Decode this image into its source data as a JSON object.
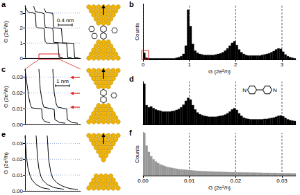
{
  "chart_data": [
    {
      "title": "a",
      "type": "line",
      "y_label": "G (2e²/h)",
      "xlim": [
        0,
        1.6
      ],
      "ylim": [
        0,
        3.5
      ],
      "yticks": [
        0,
        1,
        2,
        3
      ],
      "grid": true,
      "tick_labels": "y",
      "color": "#000000",
      "scale_bar": {
        "value": 0.4,
        "label": "0.4 nm"
      },
      "series": [
        {
          "x": [
            0,
            0.05,
            0.1,
            0.25,
            0.3,
            0.32,
            0.35,
            0.55,
            0.58,
            0.62,
            0.95,
            0.98,
            1.1
          ],
          "values": [
            3.45,
            3.2,
            3.05,
            3,
            2.95,
            2.1,
            2.02,
            1.98,
            1.1,
            1,
            0.97,
            0.05,
            0
          ]
        },
        {
          "x": [
            0.25,
            0.3,
            0.5,
            0.55,
            0.58,
            0.8,
            0.83,
            1.2,
            1.23,
            1.35
          ],
          "values": [
            3.45,
            3.1,
            3,
            2.95,
            2.05,
            1.98,
            1.05,
            0.97,
            0.04,
            0
          ]
        },
        {
          "x": [
            0.55,
            0.6,
            0.8,
            0.83,
            1.05,
            1.08,
            1.4,
            1.43,
            1.55
          ],
          "values": [
            3.3,
            3.05,
            2.98,
            2.02,
            1.97,
            1.02,
            0.98,
            0.03,
            0
          ]
        }
      ]
    },
    {
      "title": "b",
      "type": "histogram",
      "x_label": "G (2e²/h)",
      "y_label": "Counts",
      "xlim": [
        0,
        3.3
      ],
      "ylim": [
        0,
        100
      ],
      "xticks": [
        0,
        1,
        2,
        3
      ],
      "grid": true,
      "tick_labels": "x",
      "color": "#000000",
      "bins": [
        0,
        0.05,
        0.1,
        0.15,
        0.2,
        0.25,
        0.3,
        0.35,
        0.4,
        0.45,
        0.5,
        0.55,
        0.6,
        0.65,
        0.7,
        0.75,
        0.8,
        0.85,
        0.9,
        0.95,
        1,
        1.05,
        1.1,
        1.15,
        1.2,
        1.25,
        1.3,
        1.35,
        1.4,
        1.45,
        1.5,
        1.55,
        1.6,
        1.65,
        1.7,
        1.75,
        1.8,
        1.85,
        1.9,
        1.95,
        2,
        2.05,
        2.1,
        2.15,
        2.2,
        2.25,
        2.3,
        2.35,
        2.4,
        2.45,
        2.5,
        2.55,
        2.6,
        2.65,
        2.7,
        2.75,
        2.8,
        2.85,
        2.9,
        2.95,
        3,
        3.05,
        3.1,
        3.15,
        3.2,
        3.25,
        3.3
      ],
      "values": [
        12,
        3,
        2,
        2,
        2,
        2,
        2,
        2,
        2,
        2,
        2,
        2,
        2,
        2,
        3,
        4,
        6,
        10,
        25,
        90,
        60,
        28,
        16,
        12,
        10,
        9,
        8,
        8,
        8,
        8,
        8,
        9,
        10,
        11,
        13,
        16,
        20,
        25,
        30,
        33,
        26,
        18,
        13,
        10,
        8,
        7,
        7,
        7,
        7,
        7,
        7,
        8,
        9,
        10,
        11,
        13,
        15,
        18,
        20,
        19,
        14,
        9,
        6,
        4,
        3,
        2
      ]
    },
    {
      "title": "c",
      "type": "line",
      "y_label": "G (2e²/h)",
      "xlim": [
        0,
        4
      ],
      "ylim": [
        0,
        0.035
      ],
      "yticks": [
        {
          "value": 0,
          "label": "0.00"
        },
        0.01,
        0.02,
        0.03
      ],
      "grid": true,
      "tick_labels": "y",
      "color": "#000000",
      "scale_bar": {
        "value": 1,
        "label": "1 nm"
      },
      "series": [
        {
          "x": [
            0,
            0.15,
            0.3,
            0.4,
            0.5,
            1.2,
            1.25,
            1.4,
            1.8
          ],
          "values": [
            0.035,
            0.025,
            0.016,
            0.012,
            0.0105,
            0.0098,
            0.004,
            0.002,
            0.001
          ]
        },
        {
          "x": [
            1,
            1.1,
            1.25,
            1.35,
            2.1,
            2.15,
            2.5,
            2.9
          ],
          "values": [
            0.035,
            0.022,
            0.014,
            0.011,
            0.0095,
            0.003,
            0.0012,
            0.0008
          ]
        },
        {
          "x": [
            2,
            2.1,
            2.25,
            2.35,
            3,
            3.05,
            3.4,
            3.8
          ],
          "values": [
            0.035,
            0.02,
            0.013,
            0.011,
            0.0098,
            0.003,
            0.0012,
            0.0008
          ]
        }
      ]
    },
    {
      "title": "d",
      "type": "histogram",
      "xlim": [
        0,
        0.033
      ],
      "ylim": [
        0,
        100
      ],
      "xticks": [
        0,
        0.01,
        0.02,
        0.03
      ],
      "grid": true,
      "tick_labels": false,
      "color": "#000000",
      "annotations": [
        {
          "text": "N"
        },
        {
          "text": "N"
        }
      ],
      "bins": [
        0,
        0.0005,
        0.001,
        0.0015,
        0.002,
        0.0025,
        0.003,
        0.0035,
        0.004,
        0.0045,
        0.005,
        0.0055,
        0.006,
        0.0065,
        0.007,
        0.0075,
        0.008,
        0.0085,
        0.009,
        0.0095,
        0.01,
        0.0105,
        0.011,
        0.0115,
        0.012,
        0.0125,
        0.013,
        0.0135,
        0.014,
        0.0145,
        0.015,
        0.0155,
        0.016,
        0.0165,
        0.017,
        0.0175,
        0.018,
        0.0185,
        0.019,
        0.0195,
        0.02,
        0.0205,
        0.021,
        0.0215,
        0.022,
        0.0225,
        0.023,
        0.0235,
        0.024,
        0.0245,
        0.025,
        0.0255,
        0.026,
        0.0265,
        0.027,
        0.0275,
        0.028,
        0.0285,
        0.029,
        0.0295,
        0.03,
        0.0305,
        0.031,
        0.0315,
        0.032,
        0.0325,
        0.033
      ],
      "values": [
        95,
        45,
        40,
        42,
        38,
        35,
        33,
        32,
        30,
        30,
        30,
        30,
        31,
        32,
        34,
        36,
        40,
        46,
        55,
        62,
        58,
        45,
        35,
        28,
        24,
        22,
        20,
        19,
        18,
        18,
        18,
        18,
        19,
        20,
        21,
        23,
        26,
        30,
        35,
        38,
        34,
        26,
        20,
        16,
        14,
        13,
        12,
        12,
        12,
        12,
        12,
        12,
        13,
        13,
        14,
        15,
        16,
        18,
        20,
        21,
        19,
        15,
        12,
        10,
        9,
        8
      ]
    },
    {
      "title": "e",
      "type": "line",
      "y_label": "G (2e²/h)",
      "xlim": [
        0,
        4
      ],
      "ylim": [
        0,
        0.035
      ],
      "yticks": [
        {
          "value": 0,
          "label": "0.00"
        },
        0.01,
        0.02,
        0.03
      ],
      "grid": true,
      "tick_labels": "y",
      "color": "#000000",
      "series": [
        {
          "x": [
            0,
            0.1,
            0.2,
            0.35,
            0.5,
            0.8,
            1.2,
            1.8
          ],
          "values": [
            0.035,
            0.022,
            0.015,
            0.01,
            0.007,
            0.004,
            0.002,
            0.001
          ]
        },
        {
          "x": [
            0.8,
            0.9,
            1,
            1.15,
            1.3,
            1.6,
            2.1,
            2.8
          ],
          "values": [
            0.035,
            0.021,
            0.014,
            0.009,
            0.0065,
            0.004,
            0.002,
            0.001
          ]
        },
        {
          "x": [
            1.6,
            1.7,
            1.85,
            2,
            2.3,
            2.7,
            3.2,
            3.8
          ],
          "values": [
            0.035,
            0.02,
            0.012,
            0.008,
            0.005,
            0.003,
            0.0015,
            0.0008
          ]
        }
      ]
    },
    {
      "title": "f",
      "type": "histogram",
      "x_label": "G (2e²/h)",
      "y_label": "Counts",
      "xlim": [
        0,
        0.033
      ],
      "ylim": [
        0,
        100
      ],
      "xticks": [
        {
          "value": 0,
          "label": "0.00"
        },
        0.01,
        0.02,
        0.03
      ],
      "grid": true,
      "tick_labels": "x",
      "color": "#999999",
      "bins": [
        0,
        0.0005,
        0.001,
        0.0015,
        0.002,
        0.0025,
        0.003,
        0.0035,
        0.004,
        0.0045,
        0.005,
        0.0055,
        0.006,
        0.0065,
        0.007,
        0.0075,
        0.008,
        0.0085,
        0.009,
        0.0095,
        0.01,
        0.0105,
        0.011,
        0.0115,
        0.012,
        0.0125,
        0.013,
        0.0135,
        0.014,
        0.0145,
        0.015,
        0.0155,
        0.016,
        0.0165,
        0.017,
        0.0175,
        0.018,
        0.0185,
        0.019,
        0.0195,
        0.02,
        0.0205,
        0.021,
        0.0215,
        0.022,
        0.0225,
        0.023,
        0.0235,
        0.024,
        0.0245,
        0.025,
        0.0255,
        0.026,
        0.0265,
        0.027,
        0.0275,
        0.028,
        0.0285,
        0.029,
        0.0295,
        0.03,
        0.0305,
        0.031,
        0.0315,
        0.032,
        0.0325,
        0.033
      ],
      "values": [
        100,
        70,
        55,
        45,
        38,
        33,
        29,
        26,
        24,
        22,
        20,
        19,
        18,
        17,
        16,
        15,
        14.5,
        14,
        13.5,
        13,
        12.5,
        12,
        11.5,
        11,
        10.8,
        10.5,
        10.2,
        10,
        9.8,
        9.6,
        9.4,
        9.2,
        9,
        8.8,
        8.6,
        8.4,
        8.2,
        8,
        7.9,
        7.8,
        7.7,
        7.6,
        7.5,
        7.4,
        7.3,
        7.2,
        7.1,
        7,
        6.9,
        6.8,
        6.7,
        6.6,
        6.5,
        6.4,
        6.3,
        6.2,
        6.1,
        6,
        5.9,
        5.8,
        5.7,
        5.6,
        5.5,
        5.4,
        5.3,
        5.2
      ]
    }
  ]
}
